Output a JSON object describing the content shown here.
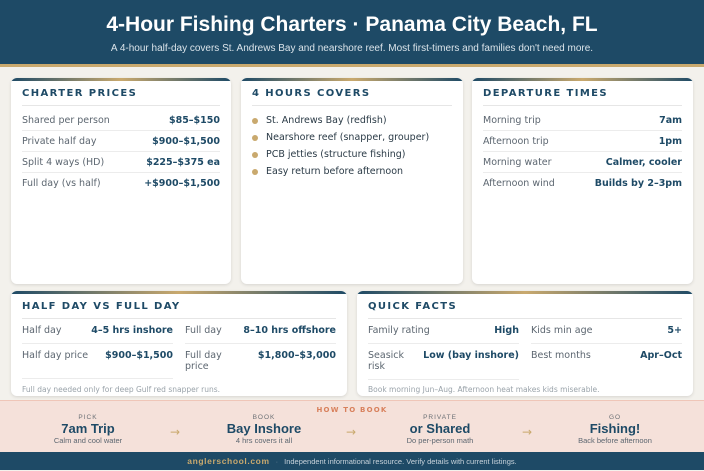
{
  "header": {
    "title": "4-Hour Fishing Charters · Panama City Beach, FL",
    "subtitle": "A 4-hour half-day covers St. Andrews Bay and nearshore reef. Most first-timers and families don't need more."
  },
  "prices": {
    "title": "CHARTER PRICES",
    "rows": [
      {
        "label": "Shared per person",
        "value": "$85–$150"
      },
      {
        "label": "Private half day",
        "value": "$900–$1,500"
      },
      {
        "label": "Split 4 ways (HD)",
        "value": "$225–$375 ea"
      },
      {
        "label": "Full day (vs half)",
        "value": "+$900–$1,500"
      }
    ]
  },
  "covers": {
    "title": "4 HOURS COVERS",
    "items": [
      "St. Andrews Bay (redfish)",
      "Nearshore reef (snapper, grouper)",
      "PCB jetties (structure fishing)",
      "Easy return before afternoon"
    ]
  },
  "departure": {
    "title": "DEPARTURE TIMES",
    "rows": [
      {
        "label": "Morning trip",
        "value": "7am"
      },
      {
        "label": "Afternoon trip",
        "value": "1pm"
      },
      {
        "label": "Morning water",
        "value": "Calmer, cooler"
      },
      {
        "label": "Afternoon wind",
        "value": "Builds by 2–3pm"
      }
    ]
  },
  "halfvsfull": {
    "title": "HALF DAY VS FULL DAY",
    "rows": [
      {
        "label": "Half day",
        "value": "4–5 hrs inshore"
      },
      {
        "label": "Full day",
        "value": "8–10 hrs offshore"
      },
      {
        "label": "Half day price",
        "value": "$900–$1,500"
      },
      {
        "label": "Full day price",
        "value": "$1,800–$3,000"
      }
    ],
    "note": "Full day needed only for deep Gulf red snapper runs."
  },
  "quickfacts": {
    "title": "QUICK FACTS",
    "rows": [
      {
        "label": "Family rating",
        "value": "High"
      },
      {
        "label": "Kids min age",
        "value": "5+"
      },
      {
        "label": "Seasick risk",
        "value": "Low (bay inshore)"
      },
      {
        "label": "Best months",
        "value": "Apr–Oct"
      }
    ],
    "note": "Book morning Jun–Aug. Afternoon heat makes kids miserable."
  },
  "howto": {
    "title": "HOW TO BOOK",
    "steps": [
      {
        "kicker": "PICK",
        "main": "7am Trip",
        "sub": "Calm and cool water"
      },
      {
        "kicker": "BOOK",
        "main": "Bay Inshore",
        "sub": "4 hrs covers it all"
      },
      {
        "kicker": "PRIVATE",
        "main": "or Shared",
        "sub": "Do per-person math"
      },
      {
        "kicker": "GO",
        "main": "Fishing!",
        "sub": "Back before afternoon"
      }
    ],
    "arrow": "→"
  },
  "footer": {
    "brand": "anglerschool.com",
    "sep": "·",
    "text": "Independent informational resource. Verify details with current listings."
  }
}
